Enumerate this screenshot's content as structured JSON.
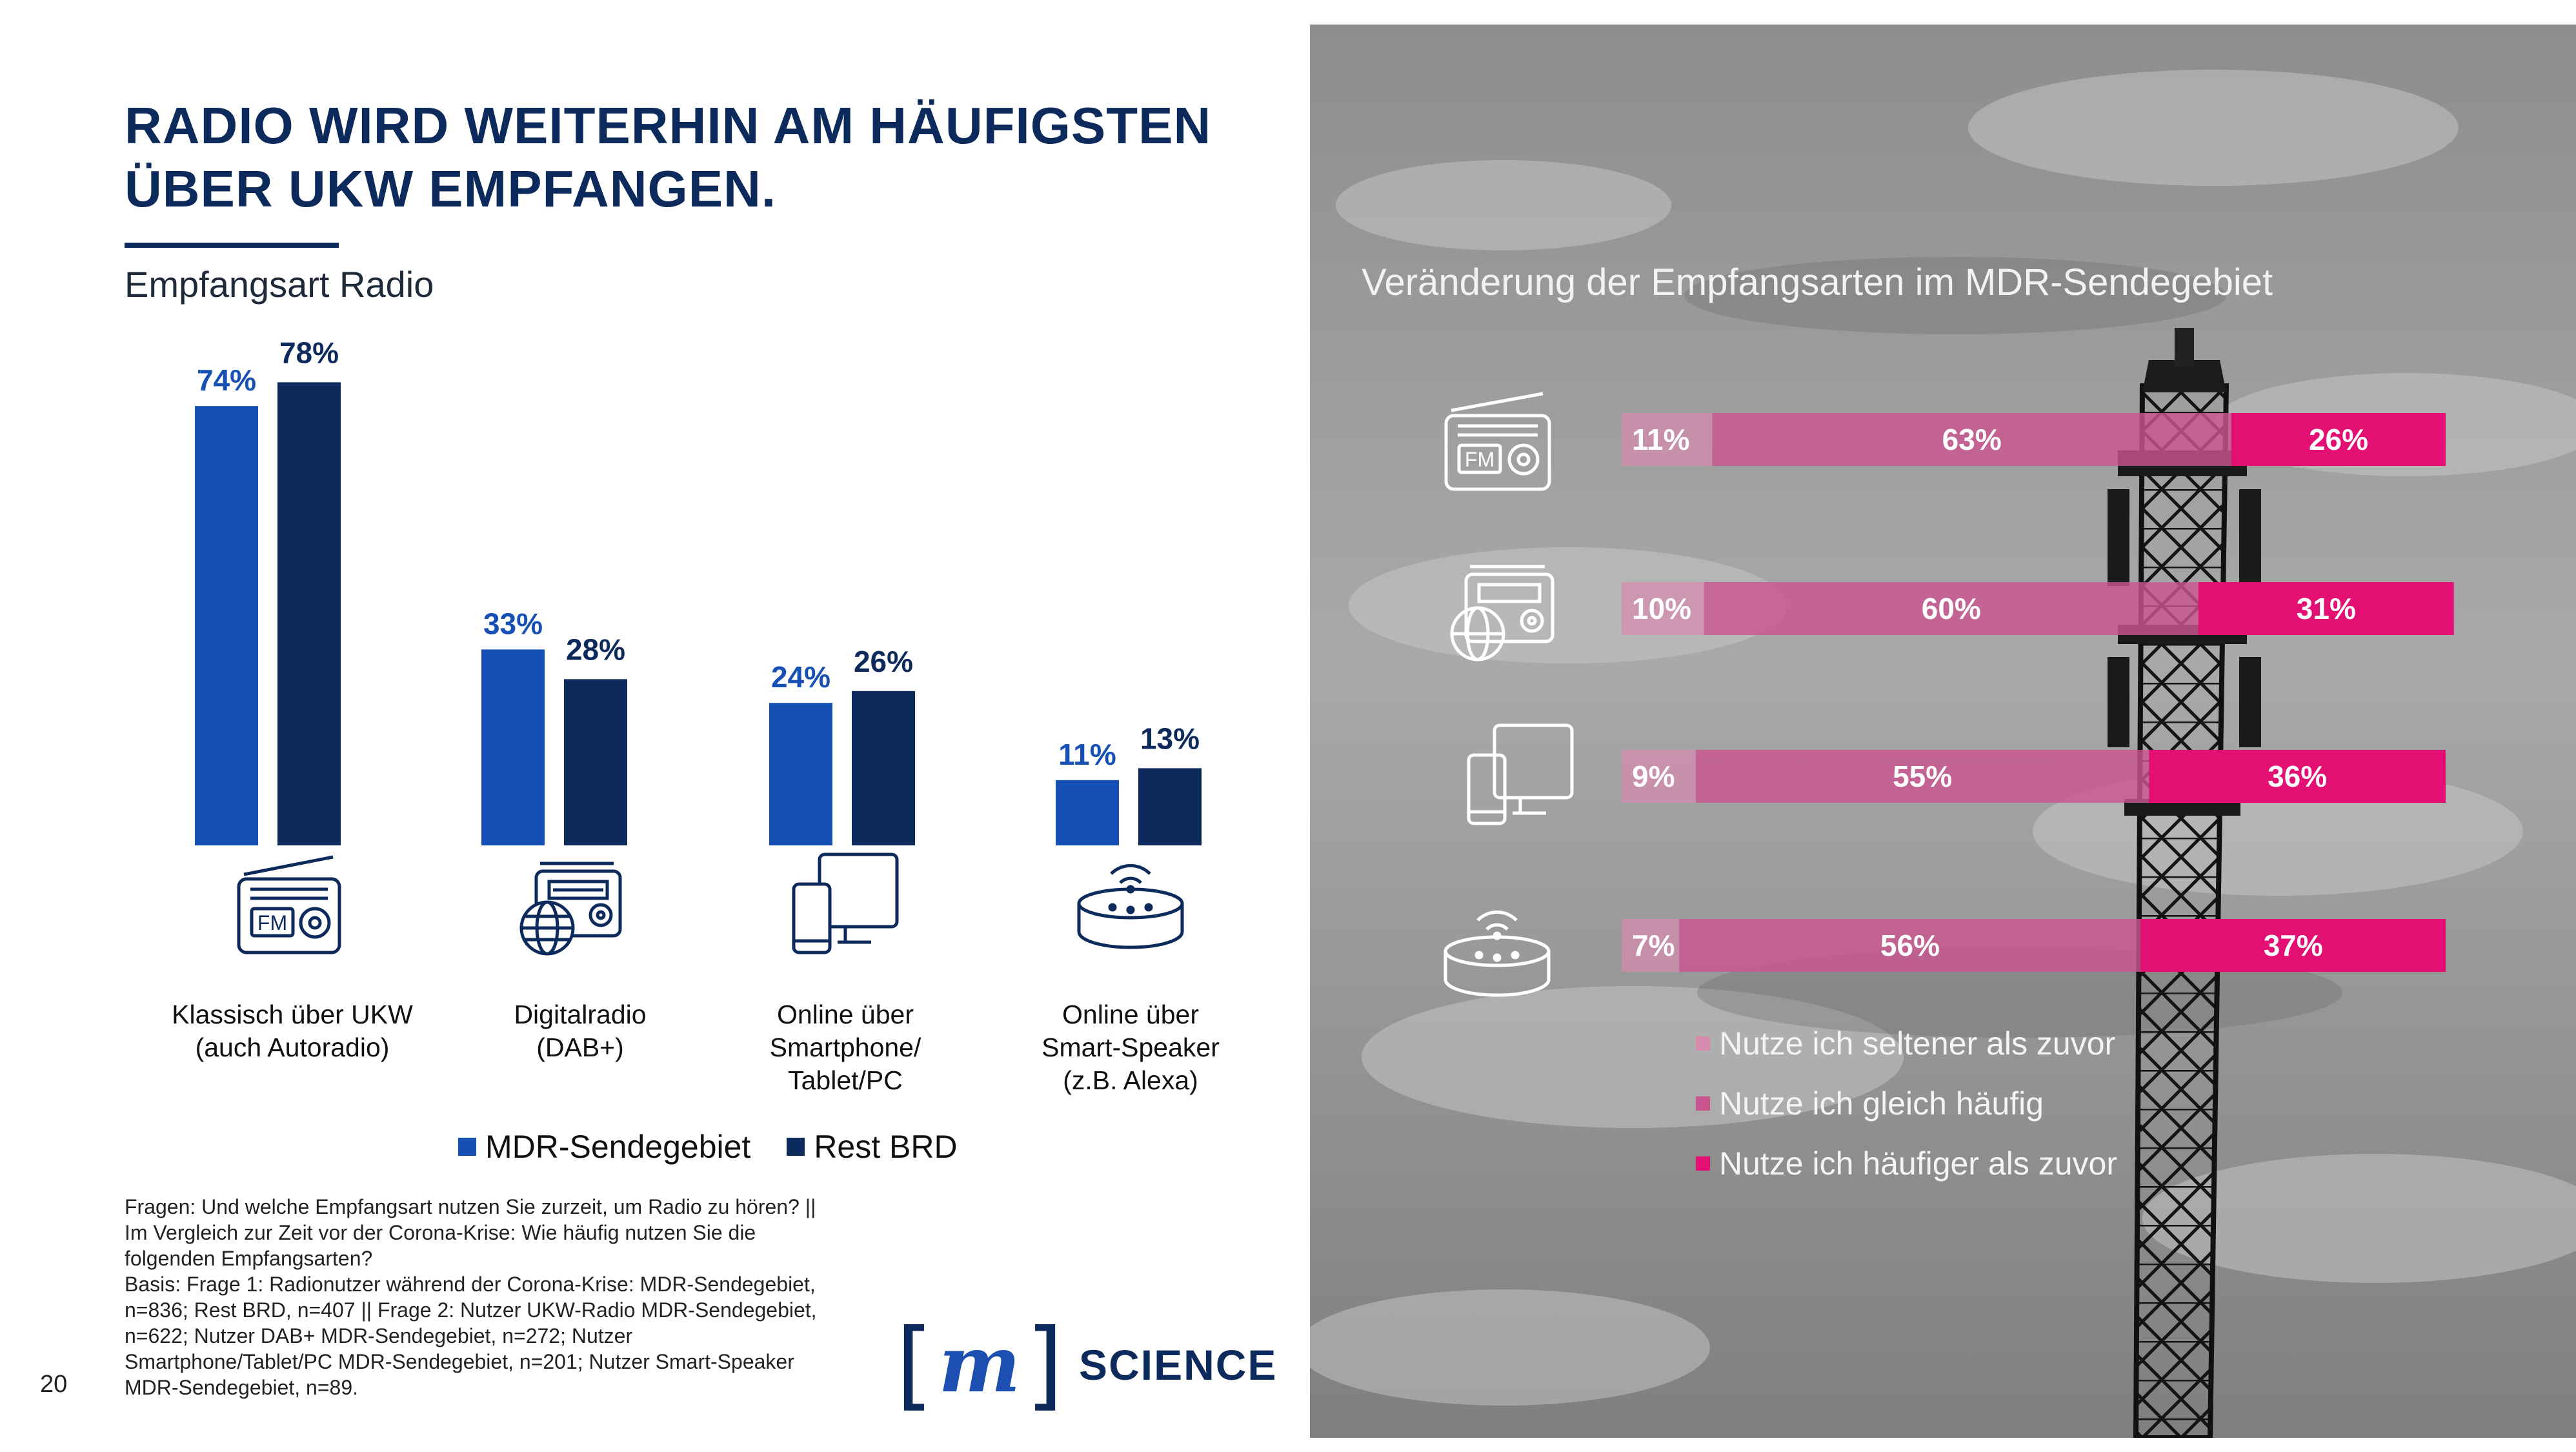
{
  "title_lines": [
    "RADIO WIRD WEITERHIN AM HÄUFIGSTEN",
    "ÜBER UKW EMPFANGEN."
  ],
  "subtitle": "Empfangsart Radio",
  "colors": {
    "mdr": "#1650b5",
    "rest": "#0d2a5c",
    "title": "#0d2a5c",
    "seltener": "#d58aae",
    "gleich": "#c95590",
    "haeufiger": "#e40f72"
  },
  "icons": [
    "fm-radio-icon",
    "digital-radio-icon",
    "devices-icon",
    "smart-speaker-icon"
  ],
  "chart_data": [
    {
      "type": "bar",
      "title": "Empfangsart Radio",
      "categories": [
        "Klassisch über UKW\n(auch Autoradio)",
        "Digitalradio\n(DAB+)",
        "Online über\nSmartphone/\nTablet/PC",
        "Online über\nSmart-Speaker\n(z.B. Alexa)"
      ],
      "series": [
        {
          "name": "MDR-Sendegebiet",
          "values": [
            74,
            33,
            24,
            11
          ],
          "labels": [
            "74%",
            "33%",
            "24%",
            "11%"
          ]
        },
        {
          "name": "Rest BRD",
          "values": [
            78,
            28,
            26,
            13
          ],
          "labels": [
            "78%",
            "28%",
            "26%",
            "13%"
          ]
        }
      ],
      "unit": "%",
      "ylim": [
        0,
        80
      ],
      "grid": false,
      "legend": "bottom"
    },
    {
      "type": "bar",
      "orientation": "horizontal",
      "stacked": true,
      "title": "Veränderung der Empfangsarten im MDR-Sendegebiet",
      "categories": [
        "fm-radio-icon",
        "digital-radio-icon",
        "devices-icon",
        "smart-speaker-icon"
      ],
      "series": [
        {
          "name": "Nutze ich seltener als zuvor",
          "values": [
            11,
            10,
            9,
            7
          ],
          "labels": [
            "11%",
            "10%",
            "9%",
            "7%"
          ]
        },
        {
          "name": "Nutze ich gleich häufig",
          "values": [
            63,
            60,
            55,
            56
          ],
          "labels": [
            "63%",
            "60%",
            "55%",
            "56%"
          ]
        },
        {
          "name": "Nutze ich häufiger als zuvor",
          "values": [
            26,
            31,
            36,
            37
          ],
          "labels": [
            "26%",
            "31%",
            "36%",
            "37%"
          ]
        }
      ],
      "unit": "%",
      "xlim": [
        0,
        100
      ],
      "legend": "bottom"
    }
  ],
  "notes": [
    "Fragen: Und welche Empfangsart nutzen Sie zurzeit, um Radio zu hören? ||",
    "Im Vergleich zur Zeit vor der Corona-Krise: Wie häufig nutzen Sie die",
    "folgenden Empfangsarten?",
    "Basis: Frage 1: Radionutzer während der Corona-Krise: MDR-Sendegebiet,",
    "n=836; Rest BRD, n=407 || Frage 2: Nutzer UKW-Radio MDR-Sendegebiet,",
    "n=622; Nutzer DAB+ MDR-Sendegebiet, n=272; Nutzer",
    "Smartphone/Tablet/PC MDR-Sendegebiet, n=201; Nutzer Smart-Speaker",
    "MDR-Sendegebiet, n=89."
  ],
  "page_number": "20",
  "logo": {
    "bracket_open": "[",
    "mark": "m",
    "bracket_close": "]",
    "text": "SCIENCE"
  }
}
